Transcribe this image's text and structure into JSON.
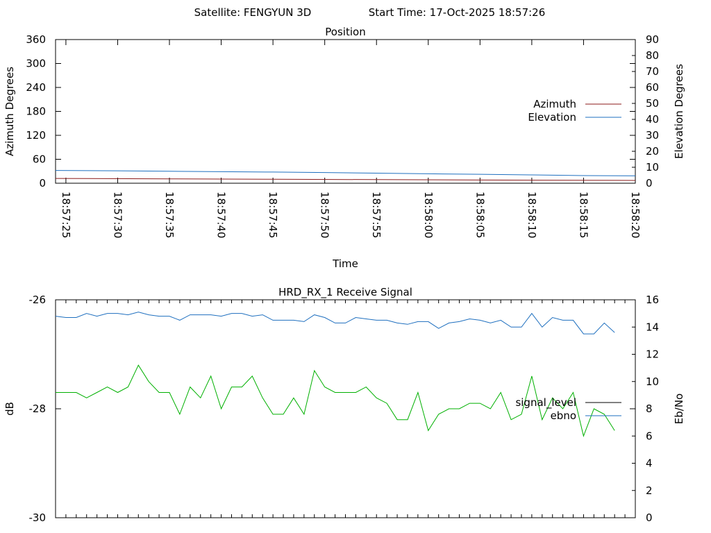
{
  "header": {
    "satellite_text": "Satellite: FENGYUN 3D",
    "start_time_text": "Start Time: 17-Oct-2025 18:57:26"
  },
  "chart_data": [
    {
      "type": "line",
      "title": "Position",
      "xlabel": "Time",
      "ylabel": "Azimuth Degrees",
      "y2label": "Elevation Degrees",
      "xlim": [
        "18:57:24",
        "18:58:20"
      ],
      "ylim": [
        0,
        360
      ],
      "y2lim": [
        0,
        90
      ],
      "x_ticks": [
        "18:57:25",
        "18:57:30",
        "18:57:35",
        "18:57:40",
        "18:57:45",
        "18:57:50",
        "18:57:55",
        "18:58:00",
        "18:58:05",
        "18:58:10",
        "18:58:15",
        "18:58:20"
      ],
      "y_ticks": [
        0,
        60,
        120,
        180,
        240,
        300,
        360
      ],
      "y2_ticks": [
        0,
        10,
        20,
        30,
        40,
        50,
        60,
        70,
        80,
        90
      ],
      "legend_position": "right",
      "series": [
        {
          "name": "Azimuth",
          "axis": "left",
          "color": "#8b1a1a",
          "points": [
            [
              "18:57:24",
              12
            ],
            [
              "18:57:35",
              11
            ],
            [
              "18:57:45",
              10
            ],
            [
              "18:57:55",
              9
            ],
            [
              "18:58:05",
              8
            ],
            [
              "18:58:20",
              7
            ]
          ]
        },
        {
          "name": "Elevation",
          "axis": "right",
          "color": "#1e6fbf",
          "points": [
            [
              "18:57:24",
              8.0
            ],
            [
              "18:57:30",
              7.8
            ],
            [
              "18:57:35",
              7.5
            ],
            [
              "18:57:40",
              7.2
            ],
            [
              "18:57:45",
              7.0
            ],
            [
              "18:57:50",
              6.7
            ],
            [
              "18:57:55",
              6.3
            ],
            [
              "18:58:00",
              5.9
            ],
            [
              "18:58:05",
              5.6
            ],
            [
              "18:58:10",
              5.2
            ],
            [
              "18:58:15",
              4.8
            ],
            [
              "18:58:20",
              4.6
            ]
          ]
        }
      ]
    },
    {
      "type": "line",
      "title": "HRD_RX_1 Receive Signal",
      "xlabel": "",
      "ylabel": "dB",
      "y2label": "Eb/No",
      "xlim": [
        "18:57:24",
        "18:58:20"
      ],
      "ylim": [
        -30,
        -26
      ],
      "y2lim": [
        0,
        16
      ],
      "y_ticks": [
        -30,
        -28,
        -26
      ],
      "y2_ticks": [
        0,
        2,
        4,
        6,
        8,
        10,
        12,
        14,
        16
      ],
      "x_minor_tick_count": 56,
      "legend_position": "right",
      "series": [
        {
          "name": "signal_level",
          "axis": "left",
          "color": "#000000",
          "values": []
        },
        {
          "name": "ebno",
          "axis": "right",
          "color": "#1e6fbf",
          "x_start": "18:57:24",
          "x_step_seconds": 1,
          "values": [
            14.8,
            14.7,
            14.7,
            15.0,
            14.8,
            15.0,
            15.0,
            14.9,
            15.1,
            14.9,
            14.8,
            14.8,
            14.5,
            14.9,
            14.9,
            14.9,
            14.8,
            15.0,
            15.0,
            14.8,
            14.9,
            14.5,
            14.5,
            14.5,
            14.4,
            14.9,
            14.7,
            14.3,
            14.3,
            14.7,
            14.6,
            14.5,
            14.5,
            14.3,
            14.2,
            14.4,
            14.4,
            13.9,
            14.3,
            14.4,
            14.6,
            14.5,
            14.3,
            14.5,
            14.0,
            14.0,
            15.0,
            14.0,
            14.7,
            14.5,
            14.5,
            13.5,
            13.5,
            14.3,
            13.6
          ]
        },
        {
          "name": "",
          "axis": "right",
          "color": "#00b000",
          "x_start": "18:57:24",
          "x_step_seconds": 1,
          "values": [
            9.2,
            9.2,
            9.2,
            8.8,
            9.2,
            9.6,
            9.2,
            9.6,
            11.2,
            10.0,
            9.2,
            9.2,
            7.6,
            9.6,
            8.8,
            10.4,
            8.0,
            9.6,
            9.6,
            10.4,
            8.8,
            7.6,
            7.6,
            8.8,
            7.6,
            10.8,
            9.6,
            9.2,
            9.2,
            9.2,
            9.6,
            8.8,
            8.4,
            7.2,
            7.2,
            9.2,
            6.4,
            7.6,
            8.0,
            8.0,
            8.4,
            8.4,
            8.0,
            9.2,
            7.2,
            7.6,
            10.4,
            7.2,
            8.8,
            8.0,
            9.2,
            6.0,
            8.0,
            7.6,
            6.4
          ]
        }
      ]
    }
  ]
}
